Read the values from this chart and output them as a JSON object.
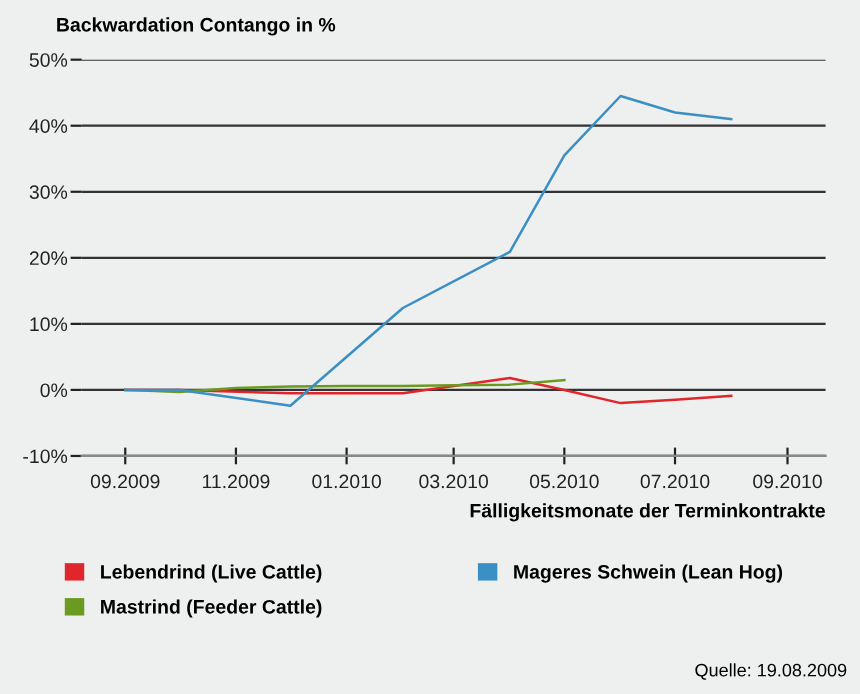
{
  "chart_data": {
    "type": "line",
    "title": "Backwardation Contango in %",
    "xlabel": "Fälligkeitsmonate der Terminkontrakte",
    "series": [
      {
        "name": "Lebendrind (Live Cattle)",
        "color": "#e0262b",
        "x": [
          "2009-09",
          "2009-10",
          "2009-12",
          "2010-02",
          "2010-04",
          "2010-05",
          "2010-06",
          "2010-07",
          "2010-08"
        ],
        "values": [
          0,
          0,
          -0.5,
          -0.5,
          1.8,
          0,
          -2,
          -1.5,
          -0.9
        ]
      },
      {
        "name": "Mastrind (Feeder Cattle)",
        "color": "#6a9a1f",
        "x": [
          "2009-09",
          "2009-10",
          "2009-11",
          "2009-12",
          "2010-01",
          "2010-02",
          "2010-03",
          "2010-04",
          "2010-05"
        ],
        "values": [
          0,
          -0.3,
          0.3,
          0.5,
          0.6,
          0.6,
          0.7,
          0.8,
          1.5
        ]
      },
      {
        "name": "Mageres Schwein (Lean Hog)",
        "color": "#3a8fc4",
        "x": [
          "2009-09",
          "2009-10",
          "2009-12",
          "2010-02",
          "2010-04",
          "2010-05",
          "2010-06",
          "2010-07",
          "2010-08"
        ],
        "values": [
          0,
          0,
          -2.4,
          12.4,
          20.9,
          35.5,
          44.5,
          42,
          41
        ]
      }
    ],
    "xlim": [
      "2009-08-08",
      "2010-09-22"
    ],
    "xticks": [
      {
        "value": "2009-09",
        "label": "09.2009"
      },
      {
        "value": "2009-11",
        "label": "11.2009"
      },
      {
        "value": "2010-01",
        "label": "01.2010"
      },
      {
        "value": "2010-03",
        "label": "03.2010"
      },
      {
        "value": "2010-05",
        "label": "05.2010"
      },
      {
        "value": "2010-07",
        "label": "07.2010"
      },
      {
        "value": "2010-09",
        "label": "09.2010"
      }
    ],
    "ylim": [
      -10,
      50
    ],
    "yticks": [
      {
        "value": -10,
        "label": "-10%"
      },
      {
        "value": 0,
        "label": "0%"
      },
      {
        "value": 10,
        "label": "10%"
      },
      {
        "value": 20,
        "label": "20%"
      },
      {
        "value": 30,
        "label": "30%"
      },
      {
        "value": 40,
        "label": "40%"
      },
      {
        "value": 50,
        "label": "50%"
      }
    ],
    "grid": "y",
    "legend": "bottom",
    "marker": "none",
    "line_style": "solid",
    "annotations": [
      "Quelle: 19.08.2009"
    ]
  }
}
